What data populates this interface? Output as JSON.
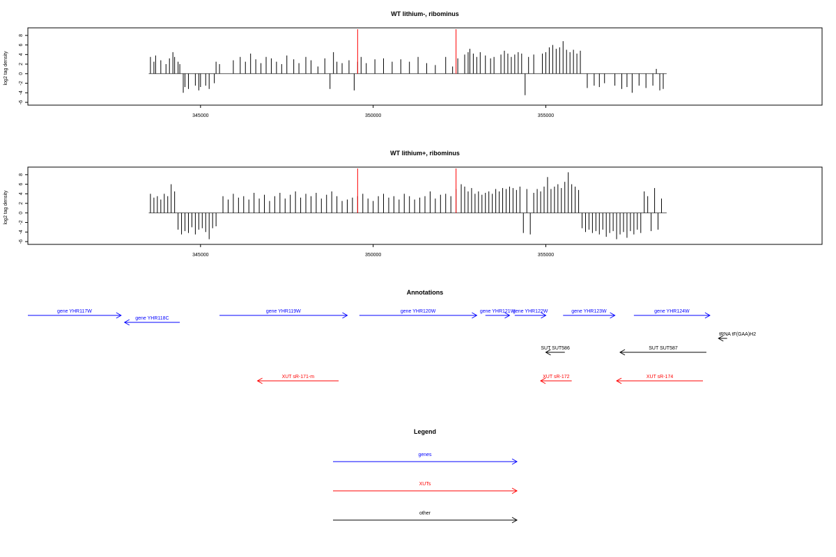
{
  "chart_data": [
    {
      "type": "bar",
      "title": "WT lithium-, ribominus",
      "xlabel": "",
      "ylabel": "log2 tag density",
      "xlim": [
        340000,
        363000
      ],
      "ylim": [
        -6,
        9
      ],
      "x_ticks": [
        345000,
        350000,
        355000
      ],
      "x_tick_labels": [
        "345000",
        "350000",
        "355000"
      ],
      "y_ticks": [
        8,
        6,
        4,
        2,
        0,
        -2,
        -4,
        -6
      ],
      "y_tick_labels": [
        "8",
        "6",
        "4",
        "2",
        "0",
        "-2",
        "-4",
        "-6"
      ],
      "marker_positions": [
        349550,
        352400
      ],
      "marker_color": "#ff0000",
      "bar_color": "#000000",
      "baseline_x_range": [
        343500,
        358500
      ],
      "series": [
        {
          "x": [
            343550,
            343650,
            343700,
            343850,
            344000,
            344100,
            344200,
            344250,
            344350,
            344400,
            344500,
            344550,
            344650,
            344850,
            344950,
            345000,
            345150,
            345250,
            345400,
            345450,
            345550,
            345950,
            346150,
            346300,
            346450,
            346600,
            346750,
            346900,
            347050,
            347200,
            347350,
            347500,
            347700,
            347850,
            348050,
            348200,
            348400,
            348600,
            348750,
            348850,
            348950,
            349100,
            349300,
            349450,
            349550,
            349650,
            349800,
            350050,
            350300,
            350550,
            350800,
            351050,
            351300,
            351550,
            351800,
            352100,
            352300,
            352450,
            352650,
            352750,
            352800,
            352900,
            353000,
            353100,
            353250,
            353400,
            353500,
            353700,
            353800,
            353900,
            354000,
            354100,
            354200,
            354300,
            354400,
            354500,
            354650,
            354900,
            355000,
            355100,
            355200,
            355300,
            355400,
            355500,
            355600,
            355700,
            355800,
            355900,
            356000,
            356200,
            356400,
            356550,
            356700,
            357000,
            357200,
            357350,
            357500,
            357700,
            357900,
            358100,
            358200,
            358300,
            358400
          ],
          "values": [
            3.5,
            2.5,
            3.8,
            2.8,
            2.0,
            3.2,
            4.5,
            3.5,
            2.5,
            2.0,
            -4.0,
            -2.8,
            -3.2,
            -2.5,
            -3.5,
            -2.8,
            -2.5,
            -3.2,
            -2.0,
            2.5,
            2.0,
            2.8,
            3.5,
            2.5,
            4.2,
            3.0,
            2.2,
            3.5,
            3.2,
            2.5,
            2.0,
            3.8,
            3.0,
            2.2,
            3.5,
            2.8,
            1.5,
            3.2,
            -3.2,
            4.5,
            2.5,
            2.2,
            2.8,
            -3.5,
            2.5,
            3.5,
            2.2,
            3.0,
            3.2,
            2.5,
            3.0,
            2.5,
            3.5,
            2.2,
            1.8,
            3.5,
            1.5,
            3.2,
            4.0,
            4.5,
            5.2,
            4.2,
            3.5,
            4.5,
            3.8,
            3.2,
            3.5,
            4.0,
            4.8,
            4.2,
            3.5,
            4.0,
            4.5,
            4.2,
            -4.5,
            3.5,
            4.0,
            4.2,
            4.5,
            5.5,
            6.0,
            5.2,
            5.5,
            6.8,
            5.0,
            4.5,
            5.0,
            4.2,
            4.8,
            -3.0,
            -2.5,
            -2.8,
            -2.0,
            -2.5,
            -3.2,
            -2.8,
            -4.0,
            -2.5,
            -3.0,
            -2.5,
            1.0,
            -3.5,
            -3.2
          ]
        }
      ]
    },
    {
      "type": "bar",
      "title": "WT lithium+, ribominus",
      "xlabel": "",
      "ylabel": "log2 tag density",
      "xlim": [
        340000,
        363000
      ],
      "ylim": [
        -6,
        9
      ],
      "x_ticks": [
        345000,
        350000,
        355000
      ],
      "x_tick_labels": [
        "345000",
        "350000",
        "355000"
      ],
      "y_ticks": [
        8,
        6,
        4,
        2,
        0,
        -2,
        -4,
        -6
      ],
      "y_tick_labels": [
        "8",
        "6",
        "4",
        "2",
        "0",
        "-2",
        "-4",
        "-6"
      ],
      "marker_positions": [
        349550,
        352400
      ],
      "marker_color": "#ff0000",
      "bar_color": "#000000",
      "baseline_x_range": [
        343500,
        358500
      ],
      "series": [
        {
          "x": [
            343550,
            343650,
            343750,
            343850,
            343950,
            344050,
            344150,
            344250,
            344350,
            344450,
            344550,
            344650,
            344750,
            344850,
            344950,
            345050,
            345150,
            345250,
            345350,
            345450,
            345650,
            345800,
            345950,
            346100,
            346250,
            346400,
            346550,
            346700,
            346850,
            347000,
            347150,
            347300,
            347450,
            347600,
            347750,
            347900,
            348050,
            348200,
            348350,
            348500,
            348650,
            348800,
            348950,
            349100,
            349250,
            349400,
            349550,
            349700,
            349850,
            350000,
            350150,
            350300,
            350450,
            350600,
            350750,
            350900,
            351050,
            351200,
            351350,
            351500,
            351650,
            351800,
            351950,
            352100,
            352250,
            352400,
            352550,
            352650,
            352750,
            352850,
            352950,
            353050,
            353150,
            353250,
            353350,
            353450,
            353550,
            353650,
            353750,
            353850,
            353950,
            354050,
            354150,
            354250,
            354350,
            354450,
            354550,
            354650,
            354750,
            354850,
            354950,
            355050,
            355150,
            355250,
            355350,
            355450,
            355550,
            355650,
            355750,
            355850,
            355950,
            356050,
            356150,
            356250,
            356350,
            356450,
            356550,
            356650,
            356750,
            356850,
            356950,
            357050,
            357150,
            357250,
            357350,
            357450,
            357550,
            357650,
            357750,
            357850,
            357950,
            358050,
            358150,
            358250,
            358350
          ],
          "values": [
            4.0,
            3.2,
            3.5,
            2.8,
            4.0,
            3.5,
            6.0,
            4.5,
            -3.5,
            -4.5,
            -3.8,
            -4.2,
            -3.0,
            -4.5,
            -3.5,
            -3.2,
            -4.0,
            -5.5,
            -3.2,
            -2.8,
            3.5,
            2.8,
            4.0,
            3.2,
            3.5,
            2.8,
            4.2,
            3.0,
            3.8,
            2.5,
            3.5,
            4.2,
            3.0,
            3.8,
            4.5,
            3.2,
            4.0,
            3.5,
            4.2,
            3.0,
            3.8,
            4.5,
            3.5,
            2.5,
            2.8,
            3.2,
            3.5,
            4.0,
            3.0,
            2.5,
            3.5,
            4.0,
            3.2,
            3.5,
            2.8,
            4.0,
            3.5,
            2.8,
            3.2,
            3.5,
            4.5,
            3.0,
            3.8,
            4.0,
            3.5,
            5.0,
            6.0,
            5.5,
            4.5,
            5.2,
            4.0,
            4.5,
            3.8,
            4.2,
            4.5,
            4.0,
            5.0,
            4.5,
            5.2,
            5.0,
            5.5,
            5.2,
            4.8,
            5.5,
            -4.2,
            5.0,
            -4.5,
            4.2,
            5.0,
            4.5,
            5.5,
            7.5,
            5.0,
            5.5,
            6.0,
            5.2,
            6.5,
            8.5,
            6.0,
            5.5,
            4.8,
            -3.2,
            -4.0,
            -3.5,
            -4.2,
            -3.8,
            -4.5,
            -3.5,
            -5.0,
            -4.2,
            -3.8,
            -5.5,
            -4.5,
            -4.0,
            -5.2,
            -3.8,
            -4.5,
            -3.5,
            -4.2,
            4.5,
            3.5,
            -3.8,
            5.2,
            -3.5,
            3.0
          ]
        }
      ]
    }
  ],
  "annotations": {
    "title": "Annotations",
    "xlim": [
      340000,
      363000
    ],
    "items": [
      {
        "label": "gene YHR117W",
        "start": 340000,
        "end": 342700,
        "row": 0,
        "dir": "fwd",
        "color": "#0000ff"
      },
      {
        "label": "gene YHR118C",
        "start": 342800,
        "end": 344400,
        "row": 1,
        "dir": "rev",
        "color": "#0000ff"
      },
      {
        "label": "gene YHR119W",
        "start": 345550,
        "end": 349250,
        "row": 0,
        "dir": "fwd",
        "color": "#0000ff"
      },
      {
        "label": "gene YHR120W",
        "start": 349600,
        "end": 353000,
        "row": 0,
        "dir": "fwd",
        "color": "#0000ff"
      },
      {
        "label": "gene YHR121W",
        "start": 353250,
        "end": 353950,
        "row": 0,
        "dir": "fwd",
        "color": "#0000ff"
      },
      {
        "label": "gene YHR122W",
        "start": 354100,
        "end": 355000,
        "row": 0,
        "dir": "fwd",
        "color": "#0000ff"
      },
      {
        "label": "gene YHR123W",
        "start": 355500,
        "end": 357000,
        "row": 0,
        "dir": "fwd",
        "color": "#0000ff"
      },
      {
        "label": "gene YHR124W",
        "start": 357550,
        "end": 359750,
        "row": 0,
        "dir": "fwd",
        "color": "#0000ff"
      },
      {
        "label": "tRNA tF(GAA)H2",
        "start": 360000,
        "end": 360250,
        "row": 2,
        "dir": "rev",
        "color": "#000000"
      },
      {
        "label": "SUT SUT586",
        "start": 355000,
        "end": 355550,
        "row": 3,
        "dir": "rev",
        "color": "#000000"
      },
      {
        "label": "SUT SUT587",
        "start": 357150,
        "end": 359650,
        "row": 3,
        "dir": "rev",
        "color": "#000000"
      },
      {
        "label": "XUT sR-171-m",
        "start": 346650,
        "end": 349000,
        "row": 4,
        "dir": "rev",
        "color": "#ff0000"
      },
      {
        "label": "XUT sR-172",
        "start": 354850,
        "end": 355750,
        "row": 4,
        "dir": "rev",
        "color": "#ff0000"
      },
      {
        "label": "XUT sR-174",
        "start": 357050,
        "end": 359550,
        "row": 4,
        "dir": "rev",
        "color": "#ff0000"
      }
    ]
  },
  "legend": {
    "title": "Legend",
    "items": [
      {
        "label": "genes",
        "color": "#0000ff"
      },
      {
        "label": "XUTs",
        "color": "#ff0000"
      },
      {
        "label": "other",
        "color": "#000000"
      }
    ]
  }
}
